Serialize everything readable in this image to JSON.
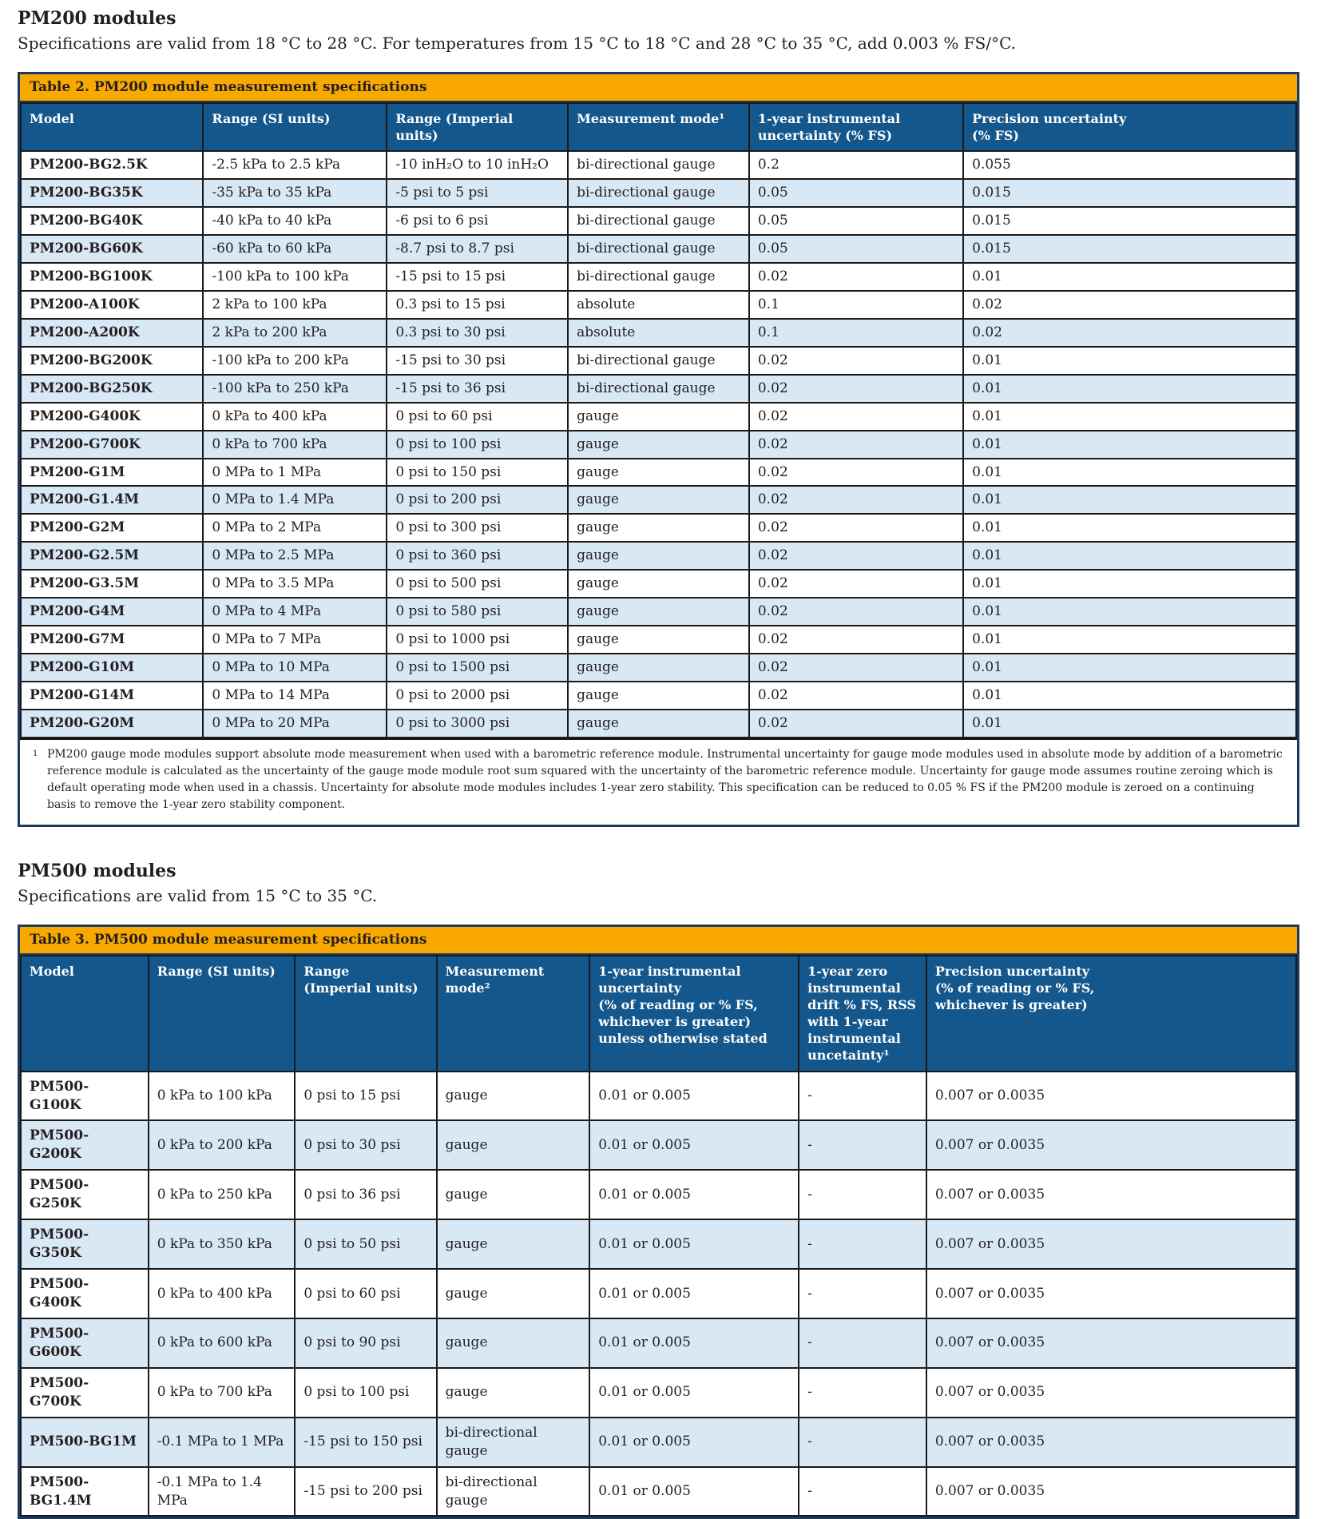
{
  "page": {
    "heading1": "PM200 modules",
    "subtitle1": "Specifications are valid from 18 °C to 28 °C. For temperatures from 15 °C to 18 °C and 28 °C to 35 °C, add 0.003 % FS/°C.",
    "heading2": "PM500 modules",
    "subtitle2": "Specifications are valid from 15 °C to 35 °C."
  },
  "colors": {
    "accent_orange": "#F9A800",
    "header_blue": "#14578C",
    "shaded_row_blue": "#D9E8F5",
    "outer_border_navy": "#1C3A5E",
    "grid_line": "#1A1A1A"
  },
  "table2": {
    "title": "Table 2. PM200 module measurement specifications",
    "columns": [
      "Model",
      "Range (SI units)",
      "Range (Imperial units)",
      "Measurement mode¹",
      "1-year instrumental\nuncertainty (% FS)",
      "Precision uncertainty\n(% FS)"
    ],
    "rows": [
      [
        "PM200-BG2.5K",
        "-2.5 kPa to 2.5 kPa",
        "-10 inH₂O to 10 inH₂O",
        "bi-directional gauge",
        "0.2",
        "0.055"
      ],
      [
        "PM200-BG35K",
        "-35 kPa to 35 kPa",
        "-5 psi to 5 psi",
        "bi-directional gauge",
        "0.05",
        "0.015"
      ],
      [
        "PM200-BG40K",
        "-40 kPa to 40 kPa",
        "-6 psi to 6 psi",
        "bi-directional gauge",
        "0.05",
        "0.015"
      ],
      [
        "PM200-BG60K",
        "-60 kPa to 60 kPa",
        "-8.7 psi to 8.7 psi",
        "bi-directional gauge",
        "0.05",
        "0.015"
      ],
      [
        "PM200-BG100K",
        "-100 kPa to 100 kPa",
        "-15 psi to 15 psi",
        "bi-directional gauge",
        "0.02",
        "0.01"
      ],
      [
        "PM200-A100K",
        "2 kPa to 100 kPa",
        "0.3 psi to 15 psi",
        "absolute",
        "0.1",
        "0.02"
      ],
      [
        "PM200-A200K",
        "2 kPa to 200 kPa",
        "0.3 psi to 30 psi",
        "absolute",
        "0.1",
        "0.02"
      ],
      [
        "PM200-BG200K",
        "-100 kPa to 200 kPa",
        "-15 psi to 30 psi",
        "bi-directional gauge",
        "0.02",
        "0.01"
      ],
      [
        "PM200-BG250K",
        "-100 kPa to 250 kPa",
        "-15 psi to 36 psi",
        "bi-directional gauge",
        "0.02",
        "0.01"
      ],
      [
        "PM200-G400K",
        "0 kPa to 400 kPa",
        "0 psi to 60 psi",
        "gauge",
        "0.02",
        "0.01"
      ],
      [
        "PM200-G700K",
        "0 kPa to 700 kPa",
        "0 psi to 100 psi",
        "gauge",
        "0.02",
        "0.01"
      ],
      [
        "PM200-G1M",
        "0 MPa to 1 MPa",
        "0 psi to 150 psi",
        "gauge",
        "0.02",
        "0.01"
      ],
      [
        "PM200-G1.4M",
        "0 MPa to 1.4 MPa",
        "0 psi to 200 psi",
        "gauge",
        "0.02",
        "0.01"
      ],
      [
        "PM200-G2M",
        "0 MPa to 2 MPa",
        "0 psi to 300 psi",
        "gauge",
        "0.02",
        "0.01"
      ],
      [
        "PM200-G2.5M",
        "0 MPa to 2.5 MPa",
        "0 psi to 360 psi",
        "gauge",
        "0.02",
        "0.01"
      ],
      [
        "PM200-G3.5M",
        "0 MPa to 3.5 MPa",
        "0 psi to 500 psi",
        "gauge",
        "0.02",
        "0.01"
      ],
      [
        "PM200-G4M",
        "0 MPa to 4 MPa",
        "0 psi to 580 psi",
        "gauge",
        "0.02",
        "0.01"
      ],
      [
        "PM200-G7M",
        "0 MPa to 7 MPa",
        "0 psi to 1000 psi",
        "gauge",
        "0.02",
        "0.01"
      ],
      [
        "PM200-G10M",
        "0 MPa to 10 MPa",
        "0 psi to 1500 psi",
        "gauge",
        "0.02",
        "0.01"
      ],
      [
        "PM200-G14M",
        "0 MPa to 14 MPa",
        "0 psi to 2000 psi",
        "gauge",
        "0.02",
        "0.01"
      ],
      [
        "PM200-G20M",
        "0 MPa to 20 MPa",
        "0 psi to 3000 psi",
        "gauge",
        "0.02",
        "0.01"
      ]
    ],
    "shaded_rows": [
      1,
      3,
      6,
      8,
      10,
      12,
      14,
      16,
      18,
      20
    ],
    "footnote_marker": "1",
    "footnote_text": "PM200 gauge mode modules support absolute mode measurement when used with a barometric reference module. Instrumental uncertainty for gauge mode modules used in absolute mode by addition of a barometric reference module is calculated as the uncertainty of the gauge mode module root sum squared with the uncertainty of the barometric reference module. Uncertainty for gauge mode assumes routine zeroing which is default operating mode when used in a chassis. Uncertainty for absolute mode modules includes 1-year zero stability. This specification can be reduced to 0.05 % FS if the PM200 module is zeroed on a continuing basis to remove the 1-year zero stability component."
  },
  "table3": {
    "title": "Table 3. PM500 module measurement specifications",
    "columns": [
      "Model",
      "Range (SI units)",
      "Range\n(Imperial units)",
      "Measurement\nmode²",
      "1-year instrumental\nuncertainty\n(% of reading or % FS,\nwhichever is greater)\nunless otherwise stated",
      "1-year zero\ninstrumental\ndrift % FS, RSS\nwith 1-year\ninstrumental\nuncetainty¹",
      "Precision uncertainty\n(% of reading or % FS,\nwhichever is greater)"
    ],
    "rows": [
      [
        "PM500-G100K",
        "0 kPa to 100 kPa",
        "0 psi to 15 psi",
        "gauge",
        "0.01 or 0.005",
        "-",
        "0.007 or 0.0035"
      ],
      [
        "PM500-G200K",
        "0 kPa to 200 kPa",
        "0 psi to 30 psi",
        "gauge",
        "0.01 or 0.005",
        "-",
        "0.007 or 0.0035"
      ],
      [
        "PM500-G250K",
        "0 kPa to 250 kPa",
        "0 psi to 36 psi",
        "gauge",
        "0.01 or 0.005",
        "-",
        "0.007 or 0.0035"
      ],
      [
        "PM500-G350K",
        "0 kPa to 350 kPa",
        "0 psi to 50 psi",
        "gauge",
        "0.01 or 0.005",
        "-",
        "0.007 or 0.0035"
      ],
      [
        "PM500-G400K",
        "0 kPa to 400 kPa",
        "0 psi to 60 psi",
        "gauge",
        "0.01 or 0.005",
        "-",
        "0.007 or 0.0035"
      ],
      [
        "PM500-G600K",
        "0 kPa to 600 kPa",
        "0 psi to 90 psi",
        "gauge",
        "0.01 or 0.005",
        "-",
        "0.007 or 0.0035"
      ],
      [
        "PM500-G700K",
        "0 kPa to 700 kPa",
        "0 psi to 100 psi",
        "gauge",
        "0.01 or 0.005",
        "-",
        "0.007 or 0.0035"
      ],
      [
        "PM500-BG1M",
        "-0.1 MPa to 1 MPa",
        "-15 psi to 150 psi",
        "bi-directional gauge",
        "0.01 or 0.005",
        "-",
        "0.007 or 0.0035"
      ],
      [
        "PM500-BG1.4M",
        "-0.1 MPa to 1.4 MPa",
        "-15 psi to 200 psi",
        "bi-directional gauge",
        "0.01 or 0.005",
        "-",
        "0.007 or 0.0035"
      ]
    ],
    "shaded_rows": [
      1,
      3,
      5,
      7
    ]
  }
}
